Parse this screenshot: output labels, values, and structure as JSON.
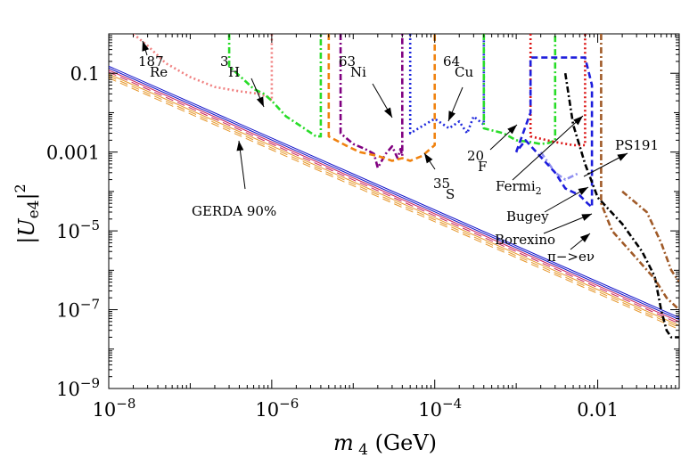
{
  "chart_data": {
    "type": "line",
    "title": "",
    "xlabel": "m_4 (GeV)",
    "ylabel": "|U_e4|^2",
    "xscale": "log",
    "yscale": "log",
    "xlim": [
      1e-08,
      0.1
    ],
    "ylim": [
      1e-09,
      1
    ],
    "x_ticks": [
      "10^-8",
      "10^-6",
      "10^-4",
      "0.01"
    ],
    "y_ticks": [
      "0.1",
      "0.001",
      "10^-5",
      "10^-7",
      "10^-9"
    ],
    "grid": false,
    "gerda_bands": [
      {
        "color": "#1010c8",
        "style": "solid",
        "offset_decades": 0.1
      },
      {
        "color": "#1010c8",
        "style": "solid",
        "offset_decades": 0.05
      },
      {
        "color": "#c81e5a",
        "style": "solid",
        "offset_decades": 0.0
      },
      {
        "color": "#c81e5a",
        "style": "dashed",
        "offset_decades": -0.05
      },
      {
        "color": "#e69628",
        "style": "solid",
        "offset_decades": -0.1
      },
      {
        "color": "#e69628",
        "style": "dashed",
        "offset_decades": -0.15
      },
      {
        "color": "#e69628",
        "style": "dashed",
        "offset_decades": -0.2
      }
    ],
    "gerda_reference": {
      "m": [
        1e-08,
        0.1
      ],
      "U": [
        0.12,
        5e-08
      ]
    },
    "series": [
      {
        "name": "187Re",
        "color": "#f08080",
        "style": "dotted",
        "m": [
          2e-08,
          3e-08,
          5e-08,
          1e-07,
          2e-07,
          4e-07,
          7e-07,
          9e-07,
          1e-06,
          1e-06
        ],
        "U": [
          1,
          0.5,
          0.18,
          0.08,
          0.045,
          0.035,
          0.03,
          0.025,
          0.02,
          1
        ]
      },
      {
        "name": "3H",
        "color": "#28dc28",
        "style": "dashdot",
        "m": [
          3e-07,
          3e-07,
          4.5e-07,
          6e-07,
          8e-07,
          1e-06,
          1.5e-06,
          2.5e-06,
          3.5e-06,
          4e-06,
          4e-06
        ],
        "U": [
          1,
          0.15,
          0.07,
          0.04,
          0.03,
          0.02,
          0.008,
          0.004,
          0.0025,
          0.0025,
          1
        ]
      },
      {
        "name": "63Ni",
        "color": "#800080",
        "style": "dashdot",
        "m": [
          7e-06,
          7e-06,
          1e-05,
          1.4e-05,
          1.8e-05,
          2e-05,
          2.5e-05,
          3e-05,
          3.5e-05,
          3.8e-05,
          4e-05,
          4e-05
        ],
        "U": [
          1,
          0.003,
          0.0016,
          0.0012,
          0.0009,
          0.0004,
          0.0009,
          0.0014,
          0.0007,
          0.0012,
          0.0008,
          1
        ]
      },
      {
        "name": "35S",
        "color": "#f0820f",
        "style": "dashed",
        "m": [
          5e-06,
          5e-06,
          8e-06,
          1.2e-05,
          2e-05,
          3e-05,
          4e-05,
          5e-05,
          7e-05,
          0.0001,
          0.0001
        ],
        "U": [
          1,
          0.0025,
          0.0015,
          0.001,
          0.0008,
          0.0006,
          0.0007,
          0.0006,
          0.0008,
          0.0015,
          1
        ]
      },
      {
        "name": "64Cu",
        "color": "#1e28dc",
        "style": "dotted",
        "m": [
          5e-05,
          5e-05,
          0.0001,
          0.00015,
          0.0002,
          0.00025,
          0.0003,
          0.0004,
          0.0004
        ],
        "U": [
          1,
          0.003,
          0.007,
          0.004,
          0.006,
          0.003,
          0.008,
          0.005,
          1
        ]
      },
      {
        "name": "20F",
        "color": "#28dc28",
        "style": "dashdot",
        "m": [
          0.0004,
          0.0004,
          0.0007,
          0.001,
          0.0015,
          0.002,
          0.0025,
          0.003,
          0.003
        ],
        "U": [
          1,
          0.004,
          0.003,
          0.002,
          0.0018,
          0.0016,
          0.0017,
          0.002,
          1
        ]
      },
      {
        "name": "Fermi2",
        "color": "#dc1414",
        "style": "dotted",
        "m": [
          0.0015,
          0.0015,
          0.003,
          0.005,
          0.007,
          0.007
        ],
        "U": [
          1,
          0.0025,
          0.0018,
          0.0015,
          0.0015,
          1
        ]
      },
      {
        "name": "Bugey",
        "color": "#9090f0",
        "style": "dashdot",
        "m": [
          0.002,
          0.003,
          0.004,
          0.005,
          0.006
        ],
        "U": [
          0.001,
          0.0003,
          0.0002,
          0.00025,
          0.0003
        ]
      },
      {
        "name": "Borexino",
        "color": "#1e1edc",
        "style": "dashed",
        "m": [
          0.001,
          0.0015,
          0.0015,
          0.005,
          0.007,
          0.0085,
          0.0085,
          0.0075,
          0.006,
          0.004,
          0.003,
          0.0013,
          0.001
        ],
        "U": [
          0.001,
          0.01,
          0.25,
          0.25,
          0.25,
          0.05,
          4e-05,
          5e-05,
          8e-05,
          0.00012,
          0.0003,
          0.002,
          0.001
        ]
      },
      {
        "name": "pi->e nu",
        "color": "#000000",
        "style": "dashdot",
        "m": [
          0.004,
          0.005,
          0.007,
          0.01,
          0.02,
          0.035,
          0.05,
          0.06,
          0.07,
          0.08,
          0.1
        ],
        "U": [
          0.1,
          0.005,
          0.0005,
          7e-05,
          1.5e-05,
          3e-06,
          7e-07,
          1e-07,
          3e-08,
          2e-08,
          2e-08
        ]
      },
      {
        "name": "PS191",
        "color": "#a05a28",
        "style": "dashdot",
        "m": [
          0.011,
          0.011,
          0.015,
          0.03,
          0.05,
          0.07,
          0.1
        ],
        "U": [
          1,
          5e-05,
          1e-05,
          2e-06,
          6e-07,
          2e-07,
          1e-07
        ]
      },
      {
        "name": "PS191 (upper)",
        "color": "#a05a28",
        "style": "dashdot",
        "m": [
          0.02,
          0.04,
          0.06,
          0.08,
          0.1
        ],
        "U": [
          0.0001,
          3e-05,
          5e-06,
          1e-06,
          5e-07
        ]
      }
    ],
    "annotations": [
      {
        "text": "187",
        "sup": true
      },
      {
        "text": "Re"
      },
      {
        "text": "3",
        "sup": true
      },
      {
        "text": "H"
      },
      {
        "text": "63",
        "sup": true
      },
      {
        "text": "Ni"
      },
      {
        "text": "64",
        "sup": true
      },
      {
        "text": "Cu"
      },
      {
        "text": "20",
        "sup": true
      },
      {
        "text": "F"
      },
      {
        "text": "35",
        "sup": true
      },
      {
        "text": "S"
      },
      {
        "text": "Fermi",
        "sub": "2"
      },
      {
        "text": "PS191"
      },
      {
        "text": "Bugey"
      },
      {
        "text": "Borexino"
      },
      {
        "text": "π−>eν"
      },
      {
        "text": "GERDA 90%"
      }
    ],
    "legend": "none"
  }
}
